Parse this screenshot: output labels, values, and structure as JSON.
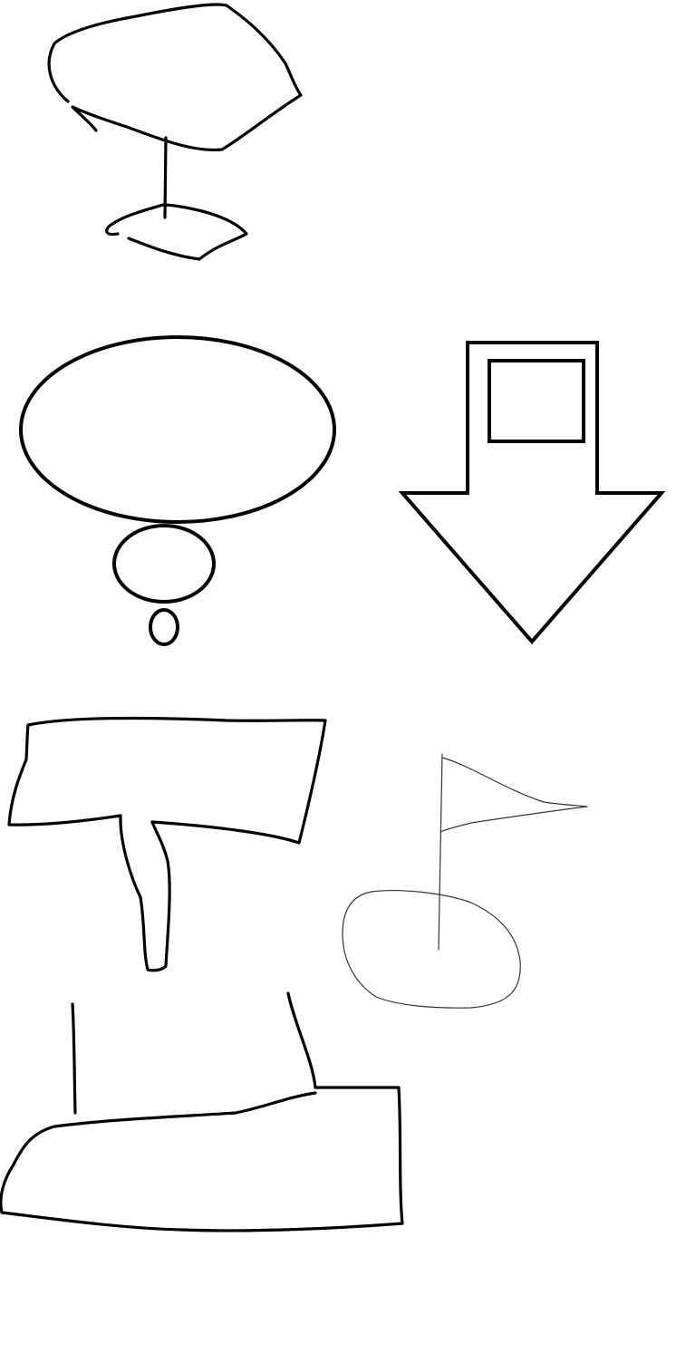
{
  "canvas": {
    "background": "#ffffff"
  },
  "colors": {
    "ink": "#000000",
    "thin_ink": "#333333"
  },
  "drawings": [
    {
      "name": "tree-sketch",
      "kind": "hand-drawn"
    },
    {
      "name": "thought-bubble",
      "kind": "shape"
    },
    {
      "name": "down-arrow",
      "kind": "shape"
    },
    {
      "name": "signpost-sketch",
      "kind": "hand-drawn"
    },
    {
      "name": "golf-flag-sketch",
      "kind": "hand-drawn"
    },
    {
      "name": "boot-sketch",
      "kind": "hand-drawn"
    }
  ]
}
